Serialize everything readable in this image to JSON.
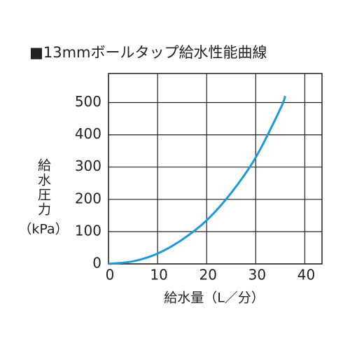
{
  "chart_data": {
    "type": "line",
    "title": "■13mmボールタップ給水性能曲線",
    "y_label": "給水圧力",
    "y_unit": "（kPa）",
    "x_label": "給水量（L／分）",
    "x": [
      0,
      5,
      10,
      15,
      20,
      25,
      30,
      35,
      36
    ],
    "values": [
      0,
      8,
      32,
      75,
      135,
      220,
      330,
      480,
      520
    ],
    "color": "#1e9ad6",
    "xlim": [
      0,
      43.5
    ],
    "ylim": [
      0,
      590
    ],
    "xticks": [
      0,
      10,
      20,
      30,
      40
    ],
    "yticks": [
      0,
      100,
      200,
      300,
      400,
      500
    ],
    "grid": true
  }
}
